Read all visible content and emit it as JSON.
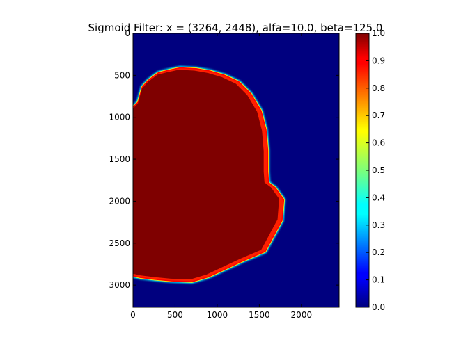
{
  "chart_data": [
    {
      "type": "heatmap",
      "title": "Sigmoid Filter: x = (3264, 2448), alfa=10.0, beta=125.0",
      "image_shape": [
        3264,
        2448
      ],
      "colormap": "jet",
      "xlim": [
        0,
        2448
      ],
      "ylim": [
        3264,
        0
      ],
      "x_ticks": [
        0,
        500,
        1000,
        1500,
        2000
      ],
      "x_tick_labels": [
        "0",
        "500",
        "1000",
        "1500",
        "2000"
      ],
      "y_ticks": [
        0,
        500,
        1000,
        1500,
        2000,
        2500,
        3000
      ],
      "y_tick_labels": [
        "0",
        "500",
        "1000",
        "1500",
        "2000",
        "2500",
        "3000"
      ],
      "background_value": 0.0,
      "region_value": 1.0,
      "region_outline": [
        [
          0,
          880
        ],
        [
          60,
          820
        ],
        [
          110,
          640
        ],
        [
          180,
          560
        ],
        [
          300,
          470
        ],
        [
          420,
          440
        ],
        [
          560,
          410
        ],
        [
          750,
          420
        ],
        [
          920,
          450
        ],
        [
          1090,
          500
        ],
        [
          1260,
          580
        ],
        [
          1400,
          720
        ],
        [
          1520,
          920
        ],
        [
          1580,
          1150
        ],
        [
          1600,
          1400
        ],
        [
          1600,
          1650
        ],
        [
          1610,
          1780
        ],
        [
          1690,
          1840
        ],
        [
          1790,
          1980
        ],
        [
          1770,
          2230
        ],
        [
          1570,
          2600
        ],
        [
          1310,
          2710
        ],
        [
          900,
          2900
        ],
        [
          700,
          2960
        ],
        [
          460,
          2950
        ],
        [
          250,
          2930
        ],
        [
          90,
          2910
        ],
        [
          0,
          2890
        ]
      ],
      "colorbar": {
        "range": [
          0.0,
          1.0
        ],
        "ticks": [
          0.0,
          0.1,
          0.2,
          0.3,
          0.4,
          0.5,
          0.6,
          0.7,
          0.8,
          0.9,
          1.0
        ],
        "tick_labels": [
          "0.0",
          "0.1",
          "0.2",
          "0.3",
          "0.4",
          "0.5",
          "0.6",
          "0.7",
          "0.8",
          "0.9",
          "1.0"
        ]
      },
      "colors": {
        "low": "#00007f",
        "high": "#7f0000",
        "edge": "#00ffff"
      }
    }
  ]
}
